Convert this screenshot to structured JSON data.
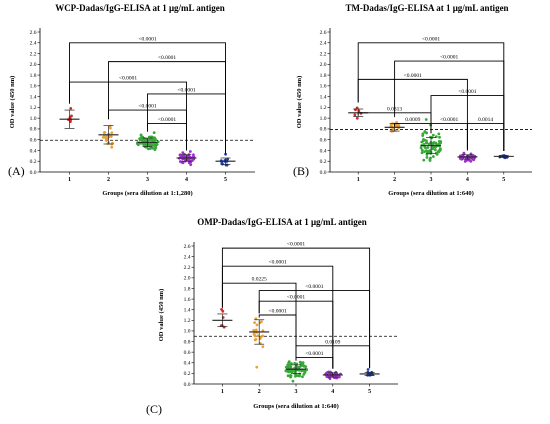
{
  "panels": [
    {
      "letter": "(A)"
    },
    {
      "letter": "(B)"
    },
    {
      "letter": "(C)"
    }
  ],
  "colors": {
    "g1": "#d62828",
    "g2": "#e9a23b",
    "g3": "#3aa63a",
    "g4": "#9b30c9",
    "g5": "#1f3fb3",
    "threshold": "#000000"
  },
  "chart_data": [
    {
      "type": "scatter",
      "title": "WCP-Dadas/IgG-ELISA at 1 μg/mL antigen",
      "xlabel": "Groups (sera dilution at 1:1,280)",
      "ylabel": "OD value (450 nm)",
      "categories": [
        "1",
        "2",
        "3",
        "4",
        "5"
      ],
      "ylim": [
        0,
        2.6
      ],
      "yticks": [
        "0.0",
        "0.2",
        "0.4",
        "0.6",
        "0.8",
        "1.0",
        "1.2",
        "1.4",
        "1.6",
        "1.8",
        "2.0",
        "2.2",
        "2.4",
        "2.6"
      ],
      "cutoff": 0.59,
      "groups": [
        {
          "mean": 0.98,
          "sd": 0.17,
          "n": 6
        },
        {
          "mean": 0.69,
          "sd": 0.17,
          "n": 22
        },
        {
          "mean": 0.55,
          "sd": 0.08,
          "n": 80
        },
        {
          "mean": 0.26,
          "sd": 0.06,
          "n": 45
        },
        {
          "mean": 0.2,
          "sd": 0.06,
          "n": 12
        }
      ],
      "comparisons": [
        {
          "from": 1,
          "to": 5,
          "label": "<0.0001",
          "y": 2.4
        },
        {
          "from": 2,
          "to": 5,
          "label": "<0.0001",
          "y": 2.05
        },
        {
          "from": 1,
          "to": 4,
          "label": "<0.0001",
          "y": 1.67
        },
        {
          "from": 3,
          "to": 5,
          "label": "<0.0001",
          "y": 1.45
        },
        {
          "from": 2,
          "to": 4,
          "label": "<0.0001",
          "y": 1.15
        },
        {
          "from": 3,
          "to": 4,
          "label": "<0.0001",
          "y": 0.9
        }
      ]
    },
    {
      "type": "scatter",
      "title": "TM-Dadas/IgG-ELISA at 1 μg/mL antigen",
      "xlabel": "Groups (sera dilution at 1:640)",
      "ylabel": "OD value (450 nm)",
      "categories": [
        "1",
        "2",
        "3",
        "4",
        "5"
      ],
      "ylim": [
        0,
        2.6
      ],
      "yticks": [
        "0.0",
        "0.2",
        "0.4",
        "0.6",
        "0.8",
        "1.0",
        "1.2",
        "1.4",
        "1.6",
        "1.8",
        "2.0",
        "2.2",
        "2.4",
        "2.6"
      ],
      "cutoff": 0.79,
      "groups": [
        {
          "mean": 1.1,
          "sd": 0.07,
          "n": 6
        },
        {
          "mean": 0.83,
          "sd": 0.07,
          "n": 22
        },
        {
          "mean": 0.49,
          "sd": 0.15,
          "n": 80
        },
        {
          "mean": 0.28,
          "sd": 0.04,
          "n": 45
        },
        {
          "mean": 0.29,
          "sd": 0.02,
          "n": 12
        }
      ],
      "comparisons": [
        {
          "from": 1,
          "to": 5,
          "label": "<0.0001",
          "y": 2.4
        },
        {
          "from": 2,
          "to": 5,
          "label": "<0.0001",
          "y": 2.06
        },
        {
          "from": 1,
          "to": 4,
          "label": "<0.0001",
          "y": 1.72
        },
        {
          "from": 3,
          "to": 5,
          "label": "<0.0001",
          "y": 1.42
        },
        {
          "from": 1,
          "to": 3,
          "label": "0.0313",
          "y": 1.1
        },
        {
          "from": 2,
          "to": 3,
          "label": "0.0009",
          "y": 0.9
        },
        {
          "from": 3,
          "to": 4,
          "label": "<0.0001",
          "y": 0.9
        },
        {
          "from": 4,
          "to": 5,
          "label": "0.0014",
          "y": 0.9
        }
      ]
    },
    {
      "type": "scatter",
      "title": "OMP-Dadas/IgG-ELISA at 1 μg/mL antigen",
      "xlabel": "Groups (sera dilution at 1:640)",
      "ylabel": "OD value (450 nm)",
      "categories": [
        "1",
        "2",
        "3",
        "4",
        "5"
      ],
      "ylim": [
        0,
        2.6
      ],
      "yticks": [
        "0.0",
        "0.2",
        "0.4",
        "0.6",
        "0.8",
        "1.0",
        "1.2",
        "1.4",
        "1.6",
        "1.8",
        "2.0",
        "2.2",
        "2.4",
        "2.6"
      ],
      "cutoff": 0.9,
      "groups": [
        {
          "mean": 1.2,
          "sd": 0.12,
          "n": 6
        },
        {
          "mean": 0.98,
          "sd": 0.23,
          "n": 22
        },
        {
          "mean": 0.28,
          "sd": 0.08,
          "n": 80
        },
        {
          "mean": 0.17,
          "sd": 0.04,
          "n": 45
        },
        {
          "mean": 0.19,
          "sd": 0.03,
          "n": 12
        }
      ],
      "comparisons": [
        {
          "from": 1,
          "to": 5,
          "label": "<0.0001",
          "y": 2.56
        },
        {
          "from": 1,
          "to": 4,
          "label": "<0.0001",
          "y": 2.22
        },
        {
          "from": 1,
          "to": 3,
          "label": "0.0225",
          "y": 1.9
        },
        {
          "from": 2,
          "to": 5,
          "label": "<0.0001",
          "y": 1.76
        },
        {
          "from": 2,
          "to": 4,
          "label": "<0.0001",
          "y": 1.56
        },
        {
          "from": 2,
          "to": 3,
          "label": "<0.0001",
          "y": 1.3
        },
        {
          "from": 3,
          "to": 5,
          "label": "0.0109",
          "y": 0.72
        },
        {
          "from": 3,
          "to": 4,
          "label": "<0.0001",
          "y": 0.5
        }
      ]
    }
  ]
}
